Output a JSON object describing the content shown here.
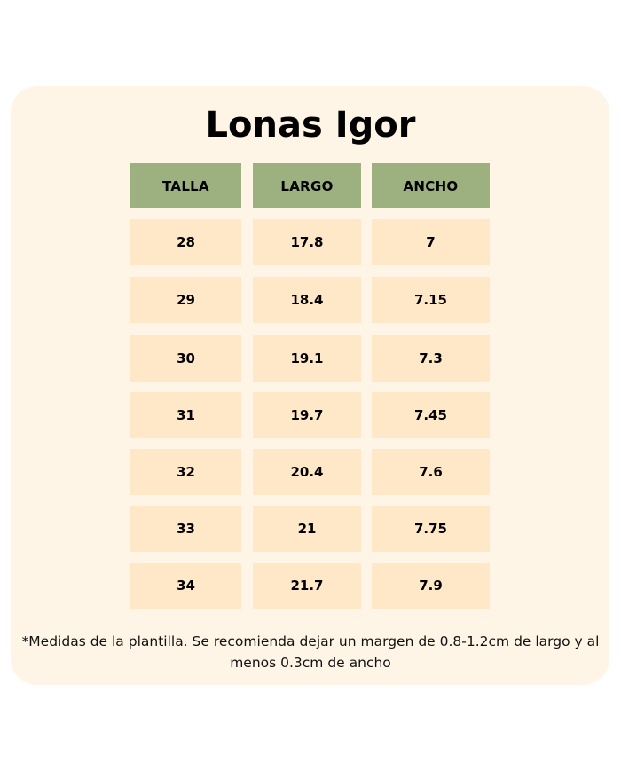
{
  "title": "Lonas Igor",
  "table": {
    "headers": [
      "TALLA",
      "LARGO",
      "ANCHO"
    ],
    "rows": [
      [
        "28",
        "17.8",
        "7"
      ],
      [
        "29",
        "18.4",
        "7.15"
      ],
      [
        "30",
        "19.1",
        "7.3"
      ],
      [
        "31",
        "19.7",
        "7.45"
      ],
      [
        "32",
        "20.4",
        "7.6"
      ],
      [
        "33",
        "21",
        "7.75"
      ],
      [
        "34",
        "21.7",
        "7.9"
      ]
    ]
  },
  "footnote": "*Medidas de la plantilla. Se recomienda dejar un margen de 0.8-1.2cm de largo y al menos 0.3cm de ancho",
  "colors": {
    "card_background": "#fff5e6",
    "header_background": "#9cb080",
    "cell_background": "#ffe8c8",
    "text": "#000000"
  }
}
